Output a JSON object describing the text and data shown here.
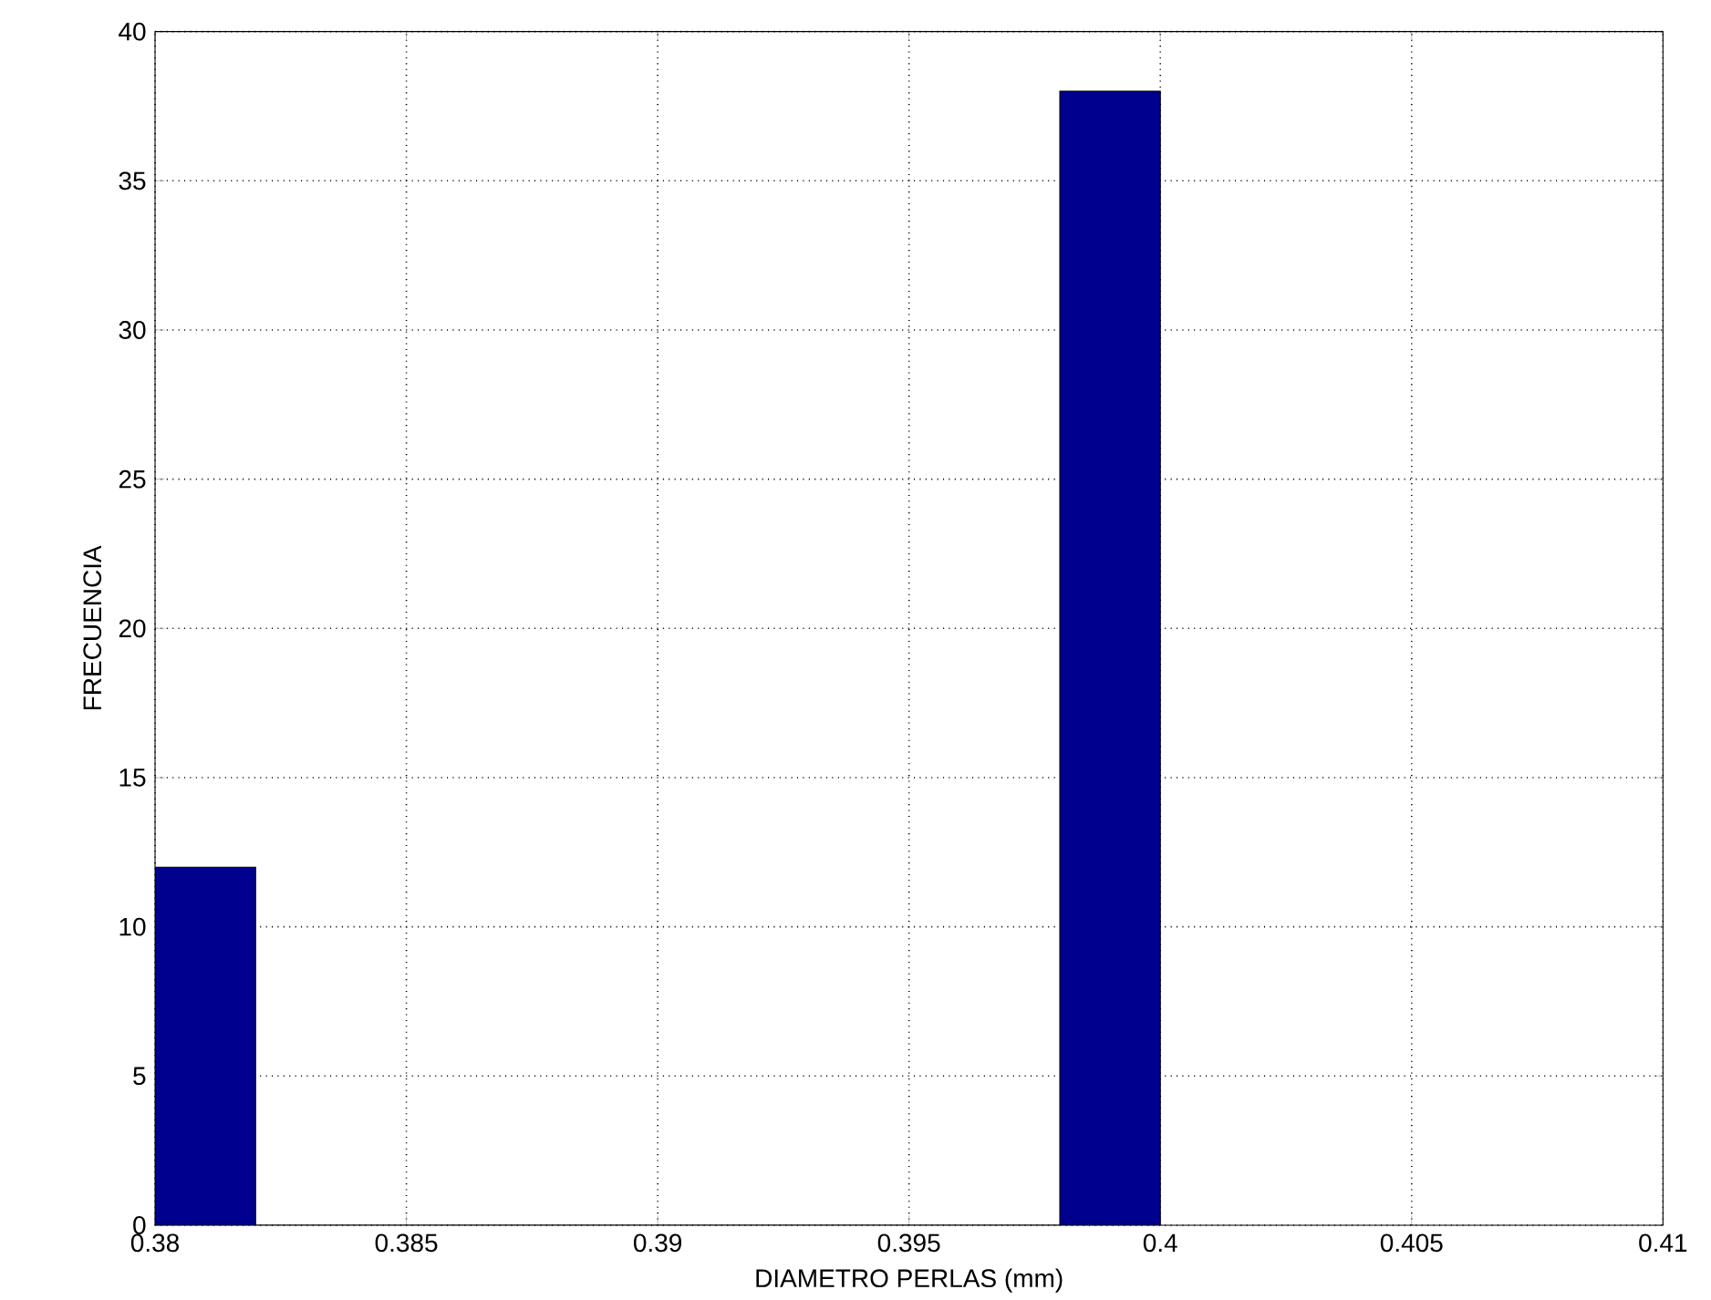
{
  "chart_data": {
    "type": "histogram",
    "xlabel": "DIAMETRO PERLAS (mm)",
    "ylabel": "FRECUENCIA",
    "bins": [
      0.38,
      0.382,
      0.384,
      0.386,
      0.388,
      0.39,
      0.392,
      0.394,
      0.396,
      0.398,
      0.4
    ],
    "values": [
      12,
      0,
      0,
      0,
      0,
      0,
      0,
      0,
      0,
      38
    ],
    "color": "#00008f",
    "xlim": [
      0.38,
      0.41
    ],
    "xticks": [
      0.38,
      0.385,
      0.39,
      0.395,
      0.4,
      0.405,
      0.41
    ],
    "ylim": [
      0,
      40
    ],
    "yticks": [
      0,
      5,
      10,
      15,
      20,
      25,
      30,
      35,
      40
    ],
    "grid": true
  }
}
